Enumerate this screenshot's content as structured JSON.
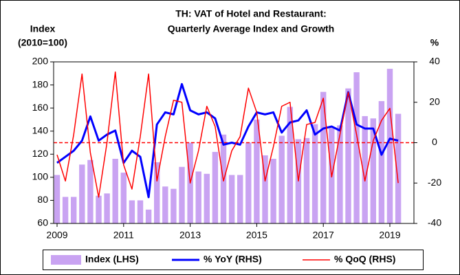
{
  "chart_data": {
    "type": "bar_line_combo",
    "title": [
      "TH: VAT of Hotel and Restaurant:",
      "Quarterly  Average Index and Growth"
    ],
    "ylabel": [
      "Index",
      "(2010=100)"
    ],
    "y2label": "%",
    "categories": [
      "2009",
      null,
      null,
      null,
      null,
      null,
      null,
      null,
      "2011",
      null,
      null,
      null,
      null,
      null,
      null,
      null,
      "2013",
      null,
      null,
      null,
      null,
      null,
      null,
      null,
      "2015",
      null,
      null,
      null,
      null,
      null,
      null,
      null,
      "2017",
      null,
      null,
      null,
      null,
      null,
      null,
      null,
      "2019",
      null
    ],
    "series": [
      {
        "name": "Index (LHS)",
        "type": "bar",
        "axis": "y",
        "color": "#c9a3f2",
        "values": [
          102,
          83,
          83,
          111,
          115,
          84,
          86,
          116,
          104,
          80,
          80,
          72,
          113,
          92,
          90,
          109,
          130,
          105,
          103,
          122,
          137,
          102,
          102,
          130,
          150,
          119,
          116,
          136,
          161,
          133,
          134,
          146,
          174,
          143,
          145,
          177,
          191,
          153,
          151,
          166,
          194,
          155
        ]
      },
      {
        "name": "% YoY (RHS)",
        "type": "line",
        "axis": "y2",
        "color": "#0000ff",
        "width": 3,
        "values": [
          -10,
          -7,
          -4,
          1,
          13,
          1,
          4,
          6,
          -10,
          -4,
          -7,
          -27,
          9,
          15,
          14,
          29,
          16,
          14,
          15,
          12,
          -1,
          0,
          -1,
          8,
          15,
          14,
          15,
          5,
          10,
          11,
          16,
          4,
          7,
          8,
          6,
          25,
          9,
          7,
          7,
          -6,
          2,
          1
        ]
      },
      {
        "name": "% QoQ (RHS)",
        "type": "line",
        "axis": "y2",
        "color": "#ff0000",
        "width": 1.5,
        "values": [
          -6,
          -19,
          4,
          34,
          -5,
          -27,
          0,
          35,
          -11,
          -23,
          3,
          34,
          -19,
          3,
          21,
          20,
          -20,
          -4,
          18,
          8,
          -19,
          -4,
          3,
          27,
          15,
          -19,
          -2,
          18,
          20,
          -19,
          9,
          10,
          22,
          -17,
          4,
          25,
          4,
          -19,
          1,
          11,
          17,
          -20
        ]
      }
    ],
    "ylim": [
      60,
      200
    ],
    "yticks": [
      60,
      80,
      100,
      120,
      140,
      160,
      180,
      200
    ],
    "y2lim": [
      -40,
      40
    ],
    "y2ticks": [
      -40,
      -20,
      0,
      20,
      40
    ],
    "hline": {
      "value": 0,
      "axis": "y2",
      "color": "#ff0000",
      "style": "dashed"
    },
    "legend": "bottom"
  }
}
